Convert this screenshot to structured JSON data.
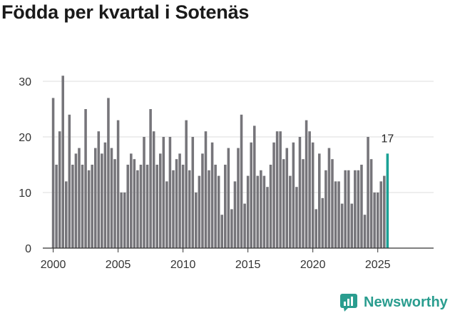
{
  "title": "Födda per kvartal i Sotenäs",
  "brand": {
    "name": "Newsworthy",
    "icon": "newsworthy-logo-icon"
  },
  "colors": {
    "bar": "#76757a",
    "highlight": "#1aa195",
    "axis": "#333333",
    "grid": "#dddddd",
    "brand": "#2a9d8f"
  },
  "chart_data": {
    "type": "bar",
    "title": "Födda per kvartal i Sotenäs",
    "xlabel": "",
    "ylabel": "",
    "ylim": [
      0,
      35
    ],
    "yticks": [
      0,
      10,
      20,
      30
    ],
    "xticks": [
      2000,
      2005,
      2010,
      2015,
      2020,
      2025
    ],
    "x_start": 2000.0,
    "x_step": 0.25,
    "values": [
      27,
      15,
      21,
      31,
      12,
      24,
      15,
      17,
      18,
      15,
      25,
      14,
      15,
      18,
      21,
      17,
      19,
      27,
      18,
      16,
      23,
      10,
      10,
      15,
      17,
      16,
      14,
      15,
      20,
      15,
      25,
      21,
      15,
      17,
      20,
      12,
      20,
      14,
      16,
      17,
      15,
      23,
      14,
      20,
      10,
      13,
      17,
      21,
      14,
      19,
      15,
      13,
      6,
      15,
      18,
      7,
      12,
      18,
      24,
      8,
      13,
      19,
      22,
      13,
      14,
      13,
      11,
      15,
      19,
      21,
      21,
      16,
      18,
      13,
      19,
      11,
      20,
      16,
      23,
      21,
      19,
      7,
      17,
      9,
      14,
      18,
      16,
      12,
      12,
      8,
      14,
      14,
      8,
      14,
      14,
      15,
      6,
      20,
      16,
      10,
      10,
      12,
      13,
      17
    ],
    "highlight_label": "17",
    "grid": true
  }
}
